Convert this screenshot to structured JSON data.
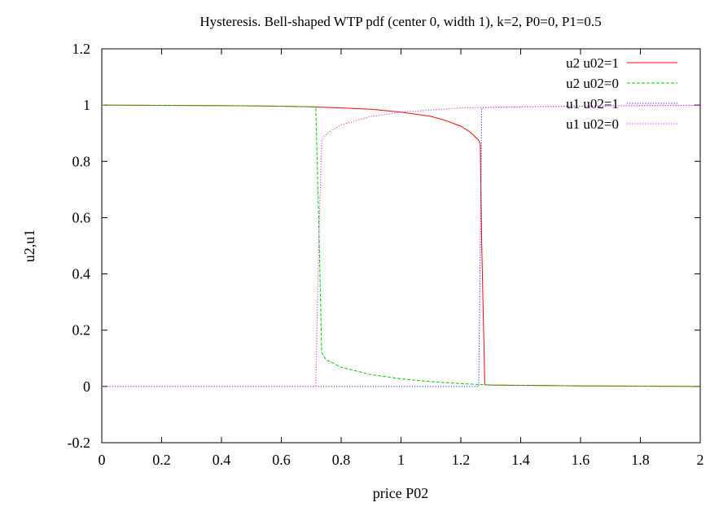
{
  "chart_data": {
    "type": "line",
    "title": "Hysteresis. Bell-shaped WTP pdf (center 0, width 1), k=2, P0=0, P1=0.5",
    "xlabel": "price P02",
    "ylabel": "u2,u1",
    "xlim": [
      0,
      2
    ],
    "ylim": [
      -0.2,
      1.2
    ],
    "xticks": [
      0,
      0.2,
      0.4,
      0.6,
      0.8,
      1,
      1.2,
      1.4,
      1.6,
      1.8,
      2
    ],
    "yticks": [
      -0.2,
      0,
      0.2,
      0.4,
      0.6,
      0.8,
      1,
      1.2
    ],
    "grid": false,
    "legend_position": "top-right",
    "series": [
      {
        "name": "u2 u02=1",
        "color": "#ff0000",
        "dash": "solid",
        "x": [
          0,
          0.2,
          0.4,
          0.6,
          0.7,
          0.8,
          0.9,
          1.0,
          1.1,
          1.15,
          1.2,
          1.23,
          1.25,
          1.26,
          1.265,
          1.27,
          1.28,
          1.3,
          1.4,
          1.5,
          1.6,
          1.8,
          2.0
        ],
        "y": [
          1,
          0.999,
          0.998,
          0.996,
          0.994,
          0.99,
          0.985,
          0.975,
          0.96,
          0.945,
          0.925,
          0.905,
          0.885,
          0.875,
          0.86,
          0.5,
          0.006,
          0.005,
          0.004,
          0.003,
          0.002,
          0.001,
          0
        ]
      },
      {
        "name": "u2 u02=0",
        "color": "#00cc00",
        "dash": "dashed",
        "x": [
          0,
          0.2,
          0.4,
          0.6,
          0.7,
          0.715,
          0.725,
          0.735,
          0.74,
          0.75,
          0.8,
          0.9,
          1.0,
          1.1,
          1.2,
          1.26,
          1.3,
          1.4,
          1.6,
          1.8,
          2.0
        ],
        "y": [
          1,
          0.999,
          0.998,
          0.996,
          0.994,
          0.993,
          0.6,
          0.12,
          0.11,
          0.095,
          0.068,
          0.042,
          0.027,
          0.017,
          0.01,
          0.007,
          0.005,
          0.004,
          0.002,
          0.001,
          0
        ]
      },
      {
        "name": "u1 u02=1",
        "color": "#2020ff",
        "dash": "dotted",
        "x": [
          0,
          0.2,
          0.4,
          0.6,
          0.8,
          1.0,
          1.2,
          1.26,
          1.265,
          1.27,
          1.28,
          1.3,
          1.4,
          1.6,
          1.8,
          2.0
        ],
        "y": [
          0,
          0,
          0,
          0,
          0,
          0,
          0,
          0,
          0.5,
          0.99,
          0.991,
          0.992,
          0.994,
          0.996,
          0.998,
          0.999
        ]
      },
      {
        "name": "u1 u02=0",
        "color": "#ee22ee",
        "dash": "dotted",
        "x": [
          0,
          0.2,
          0.4,
          0.6,
          0.7,
          0.715,
          0.725,
          0.735,
          0.74,
          0.76,
          0.8,
          0.9,
          1.0,
          1.2,
          1.4,
          1.6,
          1.8,
          2.0
        ],
        "y": [
          0,
          0,
          0,
          0,
          0,
          0.003,
          0.5,
          0.875,
          0.885,
          0.905,
          0.93,
          0.96,
          0.975,
          0.99,
          0.994,
          0.996,
          0.998,
          0.999
        ]
      }
    ]
  }
}
